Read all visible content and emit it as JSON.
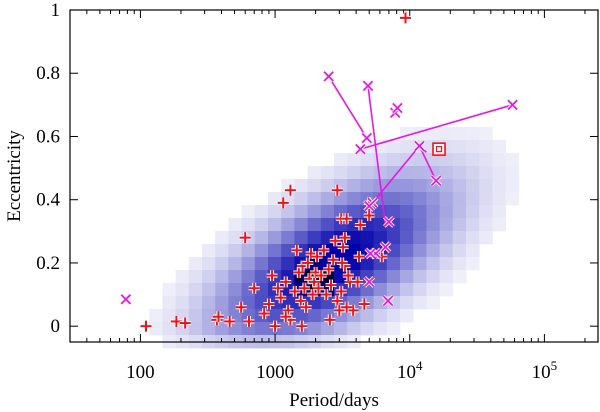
{
  "chart_data": {
    "type": "scatter",
    "xlabel": "Period/days",
    "ylabel": "Eccentricity",
    "x_scale": "log",
    "xlim": [
      30,
      250000
    ],
    "ylim": [
      -0.05,
      1.0
    ],
    "x_ticks": [
      {
        "value": 100,
        "label": "100",
        "sup": ""
      },
      {
        "value": 1000,
        "label": "1000",
        "sup": ""
      },
      {
        "value": 10000,
        "label": "10",
        "sup": "4"
      },
      {
        "value": 100000,
        "label": "10",
        "sup": "5"
      }
    ],
    "y_ticks": [
      {
        "value": 0,
        "label": "0"
      },
      {
        "value": 0.2,
        "label": "0.2"
      },
      {
        "value": 0.4,
        "label": "0.4"
      },
      {
        "value": 0.6,
        "label": "0.6"
      },
      {
        "value": 0.8,
        "label": "0.8"
      },
      {
        "value": 1,
        "label": "1"
      }
    ],
    "density": {
      "colors": [
        "#ffffff",
        "#0000aa",
        "#000000"
      ],
      "peak": [
        2000,
        0.15
      ],
      "center": [
        2600,
        0.2
      ]
    },
    "series": [
      {
        "marker": "plus",
        "color": "#e8141e",
        "points": [
          [
            9300,
            0.975
          ],
          [
            110,
            0.0
          ],
          [
            185,
            0.015
          ],
          [
            215,
            0.01
          ],
          [
            370,
            0.02
          ],
          [
            380,
            0.03
          ],
          [
            460,
            0.015
          ],
          [
            560,
            0.06
          ],
          [
            600,
            0.28
          ],
          [
            640,
            0.015
          ],
          [
            1150,
            0.39
          ],
          [
            1300,
            0.43
          ],
          [
            2900,
            0.43
          ],
          [
            3100,
            0.34
          ],
          [
            3400,
            0.34
          ],
          [
            5000,
            0.39
          ],
          [
            5000,
            0.35
          ],
          [
            4200,
            0.22
          ],
          [
            3600,
            0.14
          ],
          [
            4100,
            0.14
          ],
          [
            4600,
            0.07
          ],
          [
            3800,
            0.05
          ],
          [
            700,
            0.12
          ],
          [
            830,
            0.04
          ],
          [
            900,
            0.07
          ],
          [
            950,
            0.16
          ],
          [
            1000,
            0.0
          ],
          [
            1050,
            0.12
          ],
          [
            1100,
            0.09
          ],
          [
            1200,
            0.14
          ],
          [
            1250,
            0.05
          ],
          [
            1300,
            0.02
          ],
          [
            1400,
            0.11
          ],
          [
            1450,
            0.24
          ],
          [
            1500,
            0.17
          ],
          [
            1550,
            0.08
          ],
          [
            1600,
            0.19
          ],
          [
            1650,
            0.12
          ],
          [
            1700,
            0.06
          ],
          [
            1750,
            0.2
          ],
          [
            1800,
            0.15
          ],
          [
            1850,
            0.23
          ],
          [
            1900,
            0.1
          ],
          [
            1950,
            0.14
          ],
          [
            2000,
            0.17
          ],
          [
            2050,
            0.22
          ],
          [
            2100,
            0.12
          ],
          [
            2200,
            0.16
          ],
          [
            2300,
            0.24
          ],
          [
            2400,
            0.1
          ],
          [
            2500,
            0.18
          ],
          [
            2600,
            0.13
          ],
          [
            2700,
            0.21
          ],
          [
            2800,
            0.27
          ],
          [
            2900,
            0.08
          ],
          [
            3000,
            0.05
          ],
          [
            3100,
            0.11
          ],
          [
            3200,
            0.25
          ],
          [
            3300,
            0.19
          ],
          [
            3400,
            0.06
          ],
          [
            3500,
            0.16
          ],
          [
            3300,
            0.28
          ],
          [
            3150,
            0.2
          ],
          [
            2550,
            0.02
          ],
          [
            1580,
            0.0
          ],
          [
            4300,
            0.32
          ],
          [
            6200,
            0.22
          ],
          [
            1200,
            0.03
          ]
        ]
      },
      {
        "marker": "cross",
        "color": "#e319e3",
        "points": [
          [
            78,
            0.085
          ],
          [
            2500,
            0.79
          ],
          [
            4900,
            0.76
          ],
          [
            7800,
            0.675
          ],
          [
            8100,
            0.69
          ],
          [
            4800,
            0.595
          ],
          [
            4300,
            0.56
          ],
          [
            58000,
            0.7
          ],
          [
            11800,
            0.57
          ],
          [
            15700,
            0.46
          ],
          [
            5300,
            0.39
          ],
          [
            5000,
            0.38
          ],
          [
            7000,
            0.33
          ],
          [
            6600,
            0.25
          ],
          [
            5600,
            0.23
          ],
          [
            5100,
            0.23
          ],
          [
            5000,
            0.14
          ],
          [
            6900,
            0.08
          ]
        ]
      }
    ],
    "segments": [
      [
        [
          2500,
          0.79
        ],
        [
          4800,
          0.595
        ]
      ],
      [
        [
          4900,
          0.76
        ],
        [
          6600,
          0.32
        ]
      ],
      [
        [
          4300,
          0.56
        ],
        [
          58000,
          0.7
        ]
      ],
      [
        [
          11800,
          0.57
        ],
        [
          15700,
          0.46
        ]
      ],
      [
        [
          11800,
          0.57
        ],
        [
          5300,
          0.39
        ]
      ],
      [
        [
          11800,
          0.57
        ],
        [
          13300,
          0.55
        ]
      ]
    ],
    "highlight": {
      "marker": "square",
      "color": "#e8141e",
      "points": [
        [
          16500,
          0.56
        ]
      ]
    }
  }
}
